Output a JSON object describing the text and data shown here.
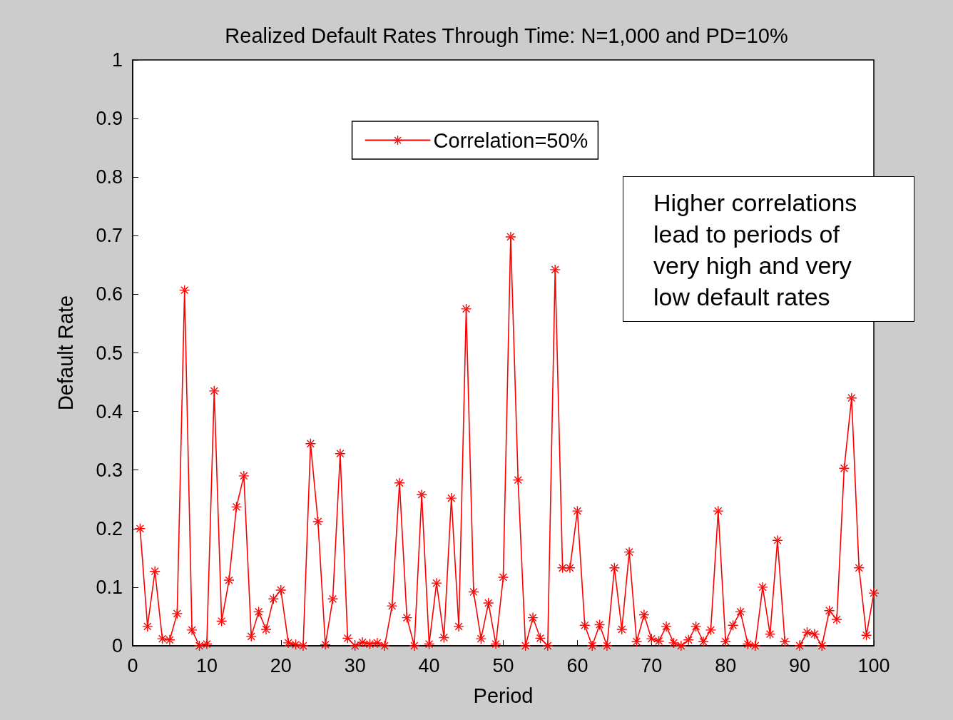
{
  "chart_data": {
    "type": "line",
    "title": "Realized Default Rates Through Time: N=1,000 and PD=10%",
    "xlabel": "Period",
    "ylabel": "Default Rate",
    "x": [
      1,
      2,
      3,
      4,
      5,
      6,
      7,
      8,
      9,
      10,
      11,
      12,
      13,
      14,
      15,
      16,
      17,
      18,
      19,
      20,
      21,
      22,
      23,
      24,
      25,
      26,
      27,
      28,
      29,
      30,
      31,
      32,
      33,
      34,
      35,
      36,
      37,
      38,
      39,
      40,
      41,
      42,
      43,
      44,
      45,
      46,
      47,
      48,
      49,
      50,
      51,
      52,
      53,
      54,
      55,
      56,
      57,
      58,
      59,
      60,
      61,
      62,
      63,
      64,
      65,
      66,
      67,
      68,
      69,
      70,
      71,
      72,
      73,
      74,
      75,
      76,
      77,
      78,
      79,
      80,
      81,
      82,
      83,
      84,
      85,
      86,
      87,
      88,
      89,
      90,
      91,
      92,
      93,
      94,
      95,
      96,
      97,
      98,
      99,
      100
    ],
    "series": [
      {
        "name": "Correlation=50%",
        "color": "#ff0000",
        "values": [
          0.2,
          0.033,
          0.127,
          0.012,
          0.01,
          0.055,
          0.607,
          0.027,
          0,
          0.003,
          0.435,
          0.042,
          0.112,
          0.237,
          0.29,
          0.016,
          0.058,
          0.028,
          0.08,
          0.095,
          0.005,
          0.002,
          0,
          0.345,
          0.212,
          0.002,
          0.08,
          0.328,
          0.013,
          0,
          0.006,
          0.003,
          0.005,
          0,
          0.068,
          0.278,
          0.048,
          0,
          0.258,
          0.003,
          0.107,
          0.014,
          0.252,
          0.033,
          0.575,
          0.092,
          0.012,
          0.073,
          0.003,
          0.117,
          0.698,
          0.283,
          0,
          0.048,
          0.013,
          0,
          0.642,
          0.133,
          0.133,
          0.23,
          0.035,
          0,
          0.036,
          0,
          0.133,
          0.028,
          0.16,
          0.007,
          0.053,
          0.012,
          0.008,
          0.033,
          0.005,
          0,
          0.01,
          0.033,
          0.007,
          0.027,
          0.23,
          0.007,
          0.035,
          0.058,
          0.003,
          0,
          0.1,
          0.02,
          0.18,
          0.007,
          null,
          0,
          0.023,
          0.02,
          0,
          0.06,
          0.045,
          0.303,
          0.423,
          0.133,
          0.018,
          0.09
        ]
      }
    ],
    "xlim": [
      0,
      100
    ],
    "xticks": [
      0,
      10,
      20,
      30,
      40,
      50,
      60,
      70,
      80,
      90,
      100
    ],
    "ylim": [
      0,
      1
    ],
    "yticks": [
      0,
      0.1,
      0.2,
      0.3,
      0.4,
      0.5,
      0.6,
      0.7,
      0.8,
      0.9,
      1
    ],
    "grid": false,
    "legend": "top",
    "marker": "cross",
    "line_style": "solid",
    "annotations": [
      "Higher correlations lead to periods of very high and very low default rates"
    ]
  }
}
